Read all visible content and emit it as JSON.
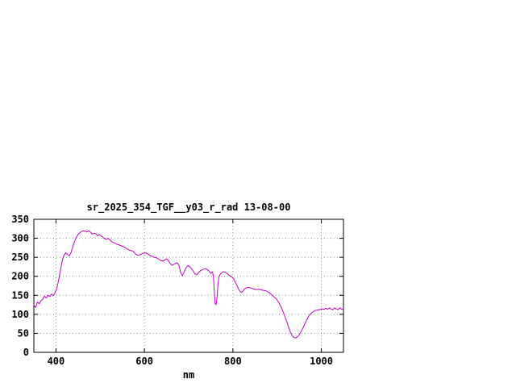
{
  "chart_data": {
    "type": "line",
    "title": "sr_2025_354_TGF__y03_r_rad 13-08-00",
    "xlabel": "nm",
    "ylabel": "",
    "xlim": [
      350,
      1050
    ],
    "ylim": [
      0,
      350
    ],
    "xticks": [
      400,
      600,
      800,
      1000
    ],
    "yticks": [
      0,
      50,
      100,
      150,
      200,
      250,
      300,
      350
    ],
    "grid": true,
    "legend_position": "none",
    "series": [
      {
        "name": "sr_2025_354_TGF__y03_r_rad",
        "color": "#c000c0",
        "points": [
          [
            350,
            125
          ],
          [
            354,
            118
          ],
          [
            358,
            132
          ],
          [
            362,
            128
          ],
          [
            366,
            136
          ],
          [
            370,
            140
          ],
          [
            374,
            148
          ],
          [
            378,
            143
          ],
          [
            382,
            150
          ],
          [
            386,
            147
          ],
          [
            390,
            153
          ],
          [
            394,
            149
          ],
          [
            398,
            157
          ],
          [
            402,
            168
          ],
          [
            406,
            190
          ],
          [
            410,
            215
          ],
          [
            414,
            240
          ],
          [
            418,
            255
          ],
          [
            422,
            262
          ],
          [
            426,
            258
          ],
          [
            430,
            254
          ],
          [
            434,
            262
          ],
          [
            438,
            278
          ],
          [
            442,
            292
          ],
          [
            446,
            303
          ],
          [
            450,
            310
          ],
          [
            454,
            315
          ],
          [
            458,
            318
          ],
          [
            462,
            320
          ],
          [
            466,
            319
          ],
          [
            470,
            317
          ],
          [
            474,
            320
          ],
          [
            478,
            316
          ],
          [
            482,
            311
          ],
          [
            486,
            313
          ],
          [
            490,
            312
          ],
          [
            494,
            307
          ],
          [
            498,
            310
          ],
          [
            502,
            306
          ],
          [
            506,
            303
          ],
          [
            510,
            299
          ],
          [
            514,
            297
          ],
          [
            518,
            300
          ],
          [
            522,
            296
          ],
          [
            526,
            291
          ],
          [
            530,
            289
          ],
          [
            534,
            287
          ],
          [
            538,
            284
          ],
          [
            542,
            283
          ],
          [
            546,
            281
          ],
          [
            550,
            279
          ],
          [
            554,
            277
          ],
          [
            558,
            274
          ],
          [
            562,
            271
          ],
          [
            566,
            269
          ],
          [
            570,
            268
          ],
          [
            574,
            266
          ],
          [
            578,
            261
          ],
          [
            582,
            257
          ],
          [
            586,
            255
          ],
          [
            590,
            257
          ],
          [
            594,
            259
          ],
          [
            598,
            261
          ],
          [
            602,
            262
          ],
          [
            606,
            260
          ],
          [
            610,
            257
          ],
          [
            614,
            254
          ],
          [
            618,
            252
          ],
          [
            622,
            250
          ],
          [
            626,
            249
          ],
          [
            630,
            247
          ],
          [
            634,
            244
          ],
          [
            638,
            241
          ],
          [
            642,
            240
          ],
          [
            646,
            243
          ],
          [
            650,
            246
          ],
          [
            654,
            241
          ],
          [
            658,
            234
          ],
          [
            662,
            229
          ],
          [
            666,
            231
          ],
          [
            670,
            234
          ],
          [
            674,
            236
          ],
          [
            678,
            229
          ],
          [
            682,
            210
          ],
          [
            686,
            202
          ],
          [
            690,
            212
          ],
          [
            694,
            222
          ],
          [
            698,
            228
          ],
          [
            702,
            226
          ],
          [
            706,
            221
          ],
          [
            710,
            214
          ],
          [
            714,
            207
          ],
          [
            718,
            204
          ],
          [
            722,
            209
          ],
          [
            726,
            214
          ],
          [
            730,
            217
          ],
          [
            734,
            219
          ],
          [
            738,
            220
          ],
          [
            742,
            218
          ],
          [
            746,
            214
          ],
          [
            750,
            208
          ],
          [
            754,
            212
          ],
          [
            756,
            200
          ],
          [
            758,
            160
          ],
          [
            760,
            128
          ],
          [
            762,
            125
          ],
          [
            764,
            140
          ],
          [
            766,
            175
          ],
          [
            768,
            195
          ],
          [
            770,
            203
          ],
          [
            774,
            209
          ],
          [
            778,
            212
          ],
          [
            782,
            211
          ],
          [
            786,
            208
          ],
          [
            790,
            204
          ],
          [
            794,
            200
          ],
          [
            798,
            198
          ],
          [
            802,
            193
          ],
          [
            806,
            184
          ],
          [
            810,
            174
          ],
          [
            814,
            164
          ],
          [
            818,
            158
          ],
          [
            822,
            160
          ],
          [
            826,
            166
          ],
          [
            830,
            169
          ],
          [
            834,
            171
          ],
          [
            838,
            170
          ],
          [
            842,
            169
          ],
          [
            846,
            167
          ],
          [
            850,
            166
          ],
          [
            854,
            165
          ],
          [
            858,
            166
          ],
          [
            862,
            165
          ],
          [
            866,
            164
          ],
          [
            870,
            163
          ],
          [
            874,
            162
          ],
          [
            878,
            160
          ],
          [
            882,
            158
          ],
          [
            886,
            153
          ],
          [
            890,
            149
          ],
          [
            894,
            145
          ],
          [
            898,
            141
          ],
          [
            902,
            134
          ],
          [
            906,
            126
          ],
          [
            910,
            117
          ],
          [
            914,
            105
          ],
          [
            918,
            93
          ],
          [
            922,
            80
          ],
          [
            926,
            66
          ],
          [
            930,
            53
          ],
          [
            934,
            44
          ],
          [
            938,
            39
          ],
          [
            942,
            38
          ],
          [
            946,
            41
          ],
          [
            950,
            46
          ],
          [
            954,
            54
          ],
          [
            958,
            63
          ],
          [
            962,
            73
          ],
          [
            966,
            83
          ],
          [
            970,
            92
          ],
          [
            974,
            99
          ],
          [
            978,
            104
          ],
          [
            982,
            107
          ],
          [
            986,
            110
          ],
          [
            990,
            111
          ],
          [
            994,
            112
          ],
          [
            998,
            113
          ],
          [
            1002,
            114
          ],
          [
            1006,
            113
          ],
          [
            1010,
            116
          ],
          [
            1014,
            113
          ],
          [
            1018,
            117
          ],
          [
            1022,
            114
          ],
          [
            1026,
            112
          ],
          [
            1030,
            117
          ],
          [
            1034,
            114
          ],
          [
            1038,
            112
          ],
          [
            1042,
            117
          ],
          [
            1046,
            113
          ],
          [
            1050,
            115
          ]
        ]
      }
    ],
    "style": {
      "grid_color": "#909090",
      "border_color": "#000000",
      "background": "#ffffff"
    }
  }
}
